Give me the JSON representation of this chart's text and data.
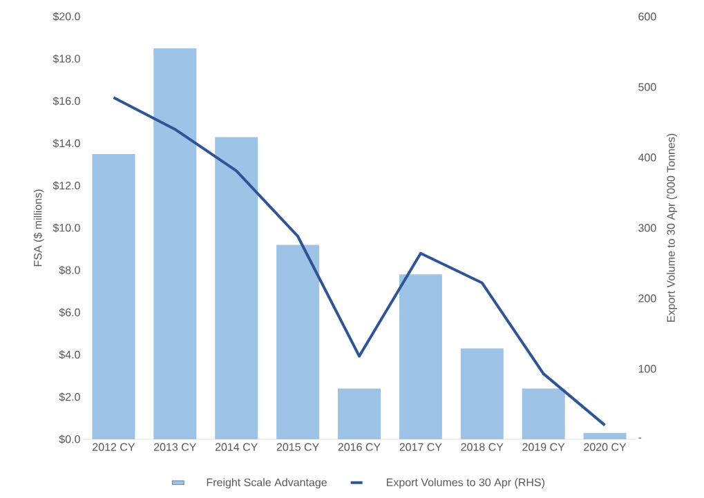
{
  "chart_data": {
    "type": "bar",
    "categories": [
      "2012 CY",
      "2013 CY",
      "2014 CY",
      "2015 CY",
      "2016 CY",
      "2017 CY",
      "2018 CY",
      "2019 CY",
      "2020 CY"
    ],
    "series": [
      {
        "name": "Freight Scale Advantage",
        "color": "#9dc3e6",
        "values": [
          13.5,
          18.5,
          14.3,
          9.2,
          2.4,
          7.8,
          4.3,
          2.4,
          0.3
        ]
      },
      {
        "name": "Export Volumes to 30 Apr (RHS)",
        "type": "line",
        "axis": "y2",
        "color": "#2f5597",
        "values": [
          485,
          440,
          381,
          288,
          118,
          264,
          222,
          93,
          20
        ]
      }
    ],
    "ylabel": "FSA ($ millions)",
    "y2label": "Export Volume to 30 Apr ('000 Tonnes)",
    "ylim": [
      0,
      20
    ],
    "yticks": [
      {
        "value": 0,
        "label": "$0.0"
      },
      {
        "value": 2,
        "label": "$2.0"
      },
      {
        "value": 4,
        "label": "$4.0"
      },
      {
        "value": 6,
        "label": "$6.0"
      },
      {
        "value": 8,
        "label": "$8.0"
      },
      {
        "value": 10,
        "label": "$10.0"
      },
      {
        "value": 12,
        "label": "$12.0"
      },
      {
        "value": 14,
        "label": "$14.0"
      },
      {
        "value": 16,
        "label": "$16.0"
      },
      {
        "value": 18,
        "label": "$18.0"
      },
      {
        "value": 20,
        "label": "$20.0"
      }
    ],
    "y2lim": [
      0,
      600
    ],
    "y2ticks": [
      {
        "value": 0,
        "label": "-"
      },
      100,
      200,
      300,
      400,
      500,
      600
    ],
    "legend": "bottom",
    "grid": false,
    "marker": "none",
    "line_style": "solid"
  }
}
